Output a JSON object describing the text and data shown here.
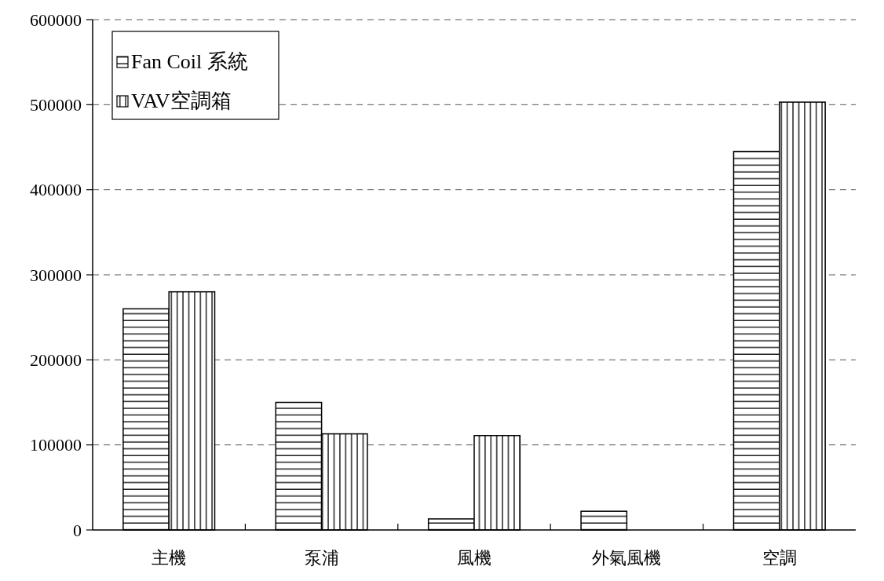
{
  "chart_data": {
    "type": "bar",
    "categories": [
      "主機",
      "泵浦",
      "風機",
      "外氣風機",
      "空調"
    ],
    "series": [
      {
        "name": "Fan Coil 系統",
        "color": "#000000",
        "values": [
          260000,
          150000,
          13000,
          22000,
          445000
        ]
      },
      {
        "name": "VAV空調箱",
        "color": "#000000",
        "values": [
          280000,
          113000,
          111000,
          null,
          503000
        ]
      }
    ],
    "ylim": [
      0,
      600000
    ],
    "yticks": [
      0,
      100000,
      200000,
      300000,
      400000,
      500000,
      600000
    ],
    "grid": "y",
    "legend": "top left"
  }
}
